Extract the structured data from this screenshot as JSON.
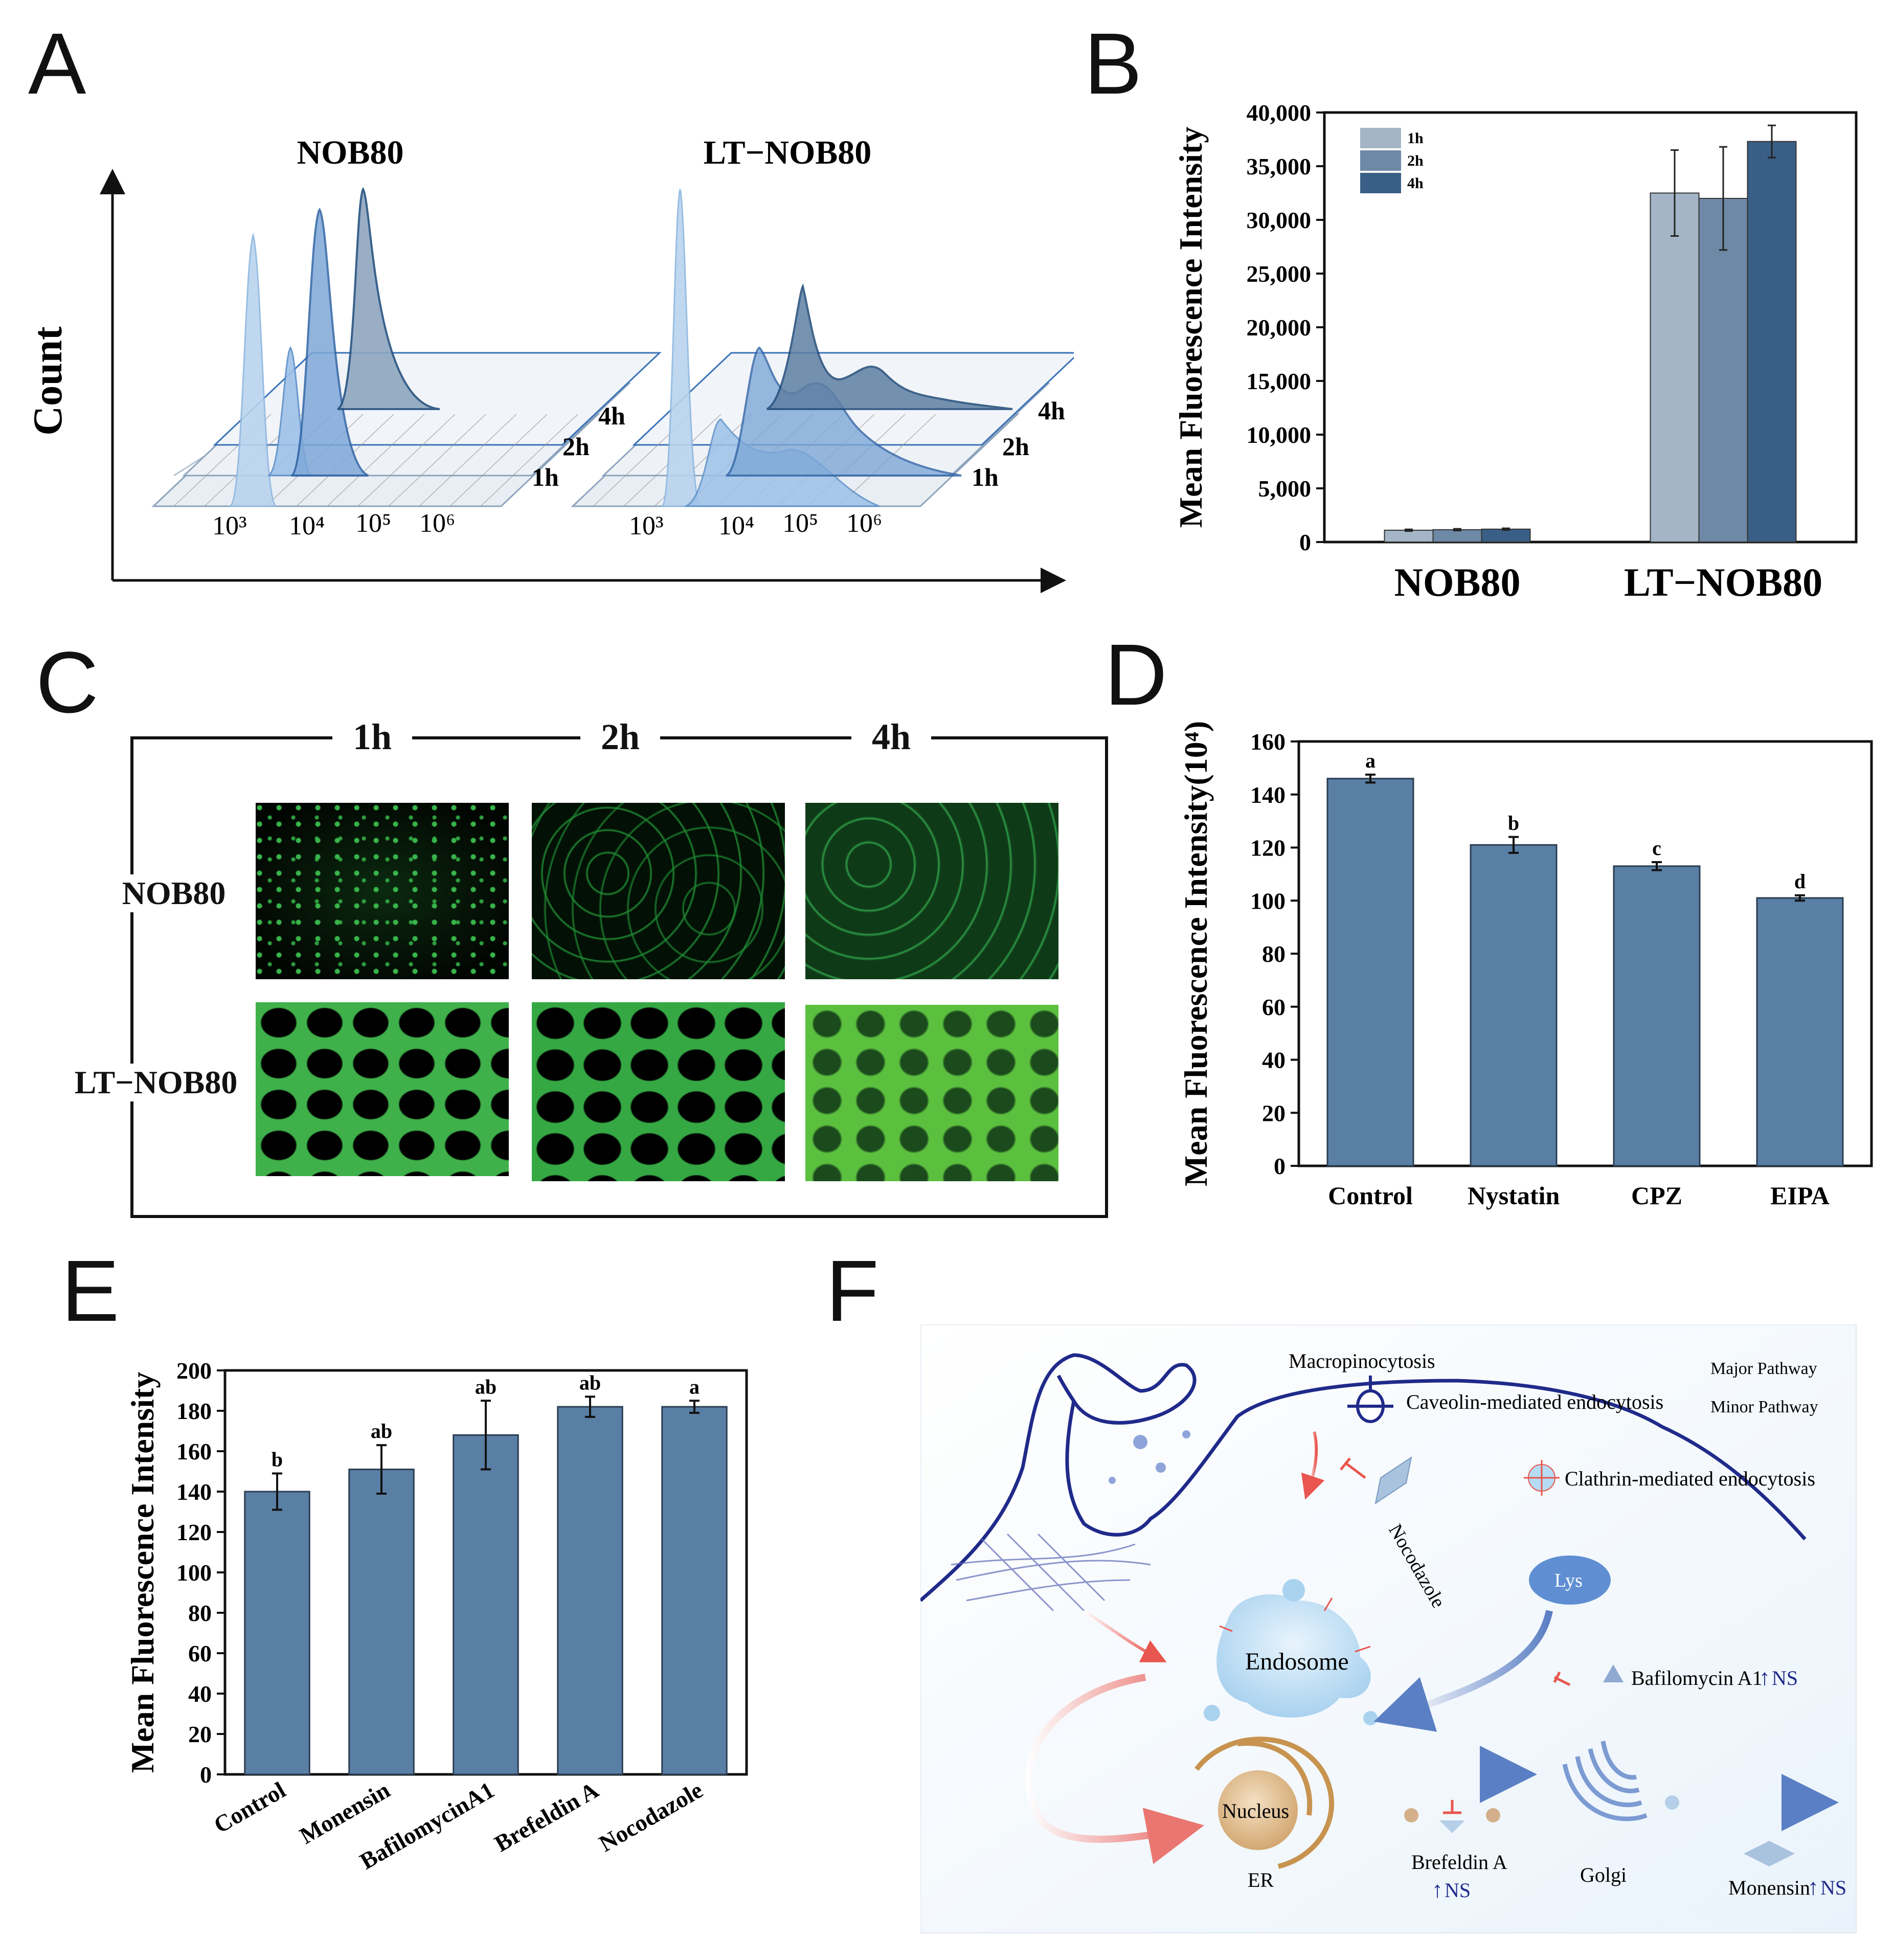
{
  "panel_labels": {
    "a": "A",
    "b": "B",
    "c": "C",
    "d": "D",
    "e": "E",
    "f": "F"
  },
  "panel_a": {
    "y_label": "Count",
    "groups": [
      {
        "title": "NOB80",
        "ticks": [
          "10³",
          "10⁴",
          "10⁵",
          "10⁶"
        ],
        "times": [
          "1h",
          "2h",
          "4h"
        ]
      },
      {
        "title": "LT−NOB80",
        "ticks": [
          "10³",
          "10⁴",
          "10⁵",
          "10⁶"
        ],
        "times": [
          "1h",
          "2h",
          "4h"
        ]
      }
    ],
    "colors": {
      "light": "#b9d4ee",
      "mid": "#5b8fc9",
      "dark": "#2d5c8e"
    }
  },
  "chart_data": [
    {
      "panel": "B",
      "type": "bar",
      "ylabel": "Mean Fluorescence Intensity",
      "categories": [
        "NOB80",
        "LT−NOB80"
      ],
      "ylim": [
        0,
        40000
      ],
      "yticks": [
        "0",
        "5,000",
        "10,000",
        "15,000",
        "20,000",
        "25,000",
        "30,000",
        "35,000",
        "40,000"
      ],
      "legend_position": "top-left",
      "series": [
        {
          "name": "1h",
          "values": [
            1100,
            32500
          ],
          "errors": [
            80,
            4000
          ],
          "color": "#a3b5c6"
        },
        {
          "name": "2h",
          "values": [
            1150,
            32000
          ],
          "errors": [
            80,
            4800
          ],
          "color": "#6e89a6"
        },
        {
          "name": "4h",
          "values": [
            1200,
            37300
          ],
          "errors": [
            80,
            1500
          ],
          "color": "#3a5f86"
        }
      ]
    },
    {
      "panel": "D",
      "type": "bar",
      "ylabel": "Mean Fluorescence Intensity(10⁴)",
      "categories": [
        "Control",
        "Nystatin",
        "CPZ",
        "EIPA"
      ],
      "values": [
        146,
        121,
        113,
        101
      ],
      "errors": [
        1.5,
        3,
        1.5,
        1
      ],
      "letters": [
        "a",
        "b",
        "c",
        "d"
      ],
      "ylim": [
        0,
        160
      ],
      "yticks": [
        "0",
        "20",
        "40",
        "60",
        "80",
        "100",
        "120",
        "140",
        "160"
      ],
      "color": "#5a7fa5"
    },
    {
      "panel": "E",
      "type": "bar",
      "ylabel": "Mean Fluorescence Intensity",
      "categories": [
        "Control",
        "Monensin",
        "BafilomycinA1",
        "Brefeldin A",
        "Nocodazole"
      ],
      "values": [
        140,
        151,
        168,
        182,
        182
      ],
      "errors": [
        9,
        12,
        17,
        5,
        3
      ],
      "letters": [
        "b",
        "ab",
        "ab",
        "ab",
        "a"
      ],
      "ylim": [
        0,
        200
      ],
      "yticks": [
        "0",
        "20",
        "40",
        "60",
        "80",
        "100",
        "120",
        "140",
        "160",
        "180",
        "200"
      ],
      "color": "#5a7fa5"
    }
  ],
  "panel_c": {
    "columns": [
      "1h",
      "2h",
      "4h"
    ],
    "rows": [
      "NOB80",
      "LT−NOB80"
    ]
  },
  "panel_f": {
    "labels": {
      "macropinocytosis": "Macropinocytosis",
      "caveolin": "Caveolin-mediated endocytosis",
      "clathrin": "Clathrin-mediated endocytosis",
      "nocodazole": "Nocodazole",
      "lys": "Lys",
      "endosome": "Endosome",
      "bafilomycin": "Bafilomycin A1",
      "nucleus": "Nucleus",
      "er": "ER",
      "brefeldin": "Brefeldin A",
      "golgi": "Golgi",
      "monensin": "Monensin",
      "ns": "NS",
      "up": "↑",
      "major": "Major Pathway",
      "minor": "Minor Pathway"
    },
    "colors": {
      "major": "#e8564f",
      "minor": "#5b7fc4",
      "membrane": "#1f2a8a"
    }
  }
}
